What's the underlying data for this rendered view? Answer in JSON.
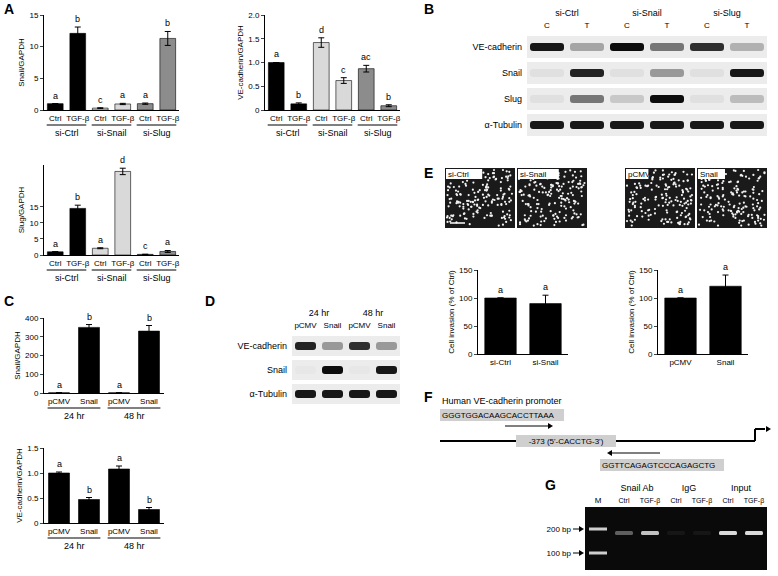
{
  "chart_data": [
    {
      "type": "bar",
      "y_label": "Snail/GAPDH",
      "categories": [
        "Ctrl",
        "TGF-β",
        "Ctrl",
        "TGF-β",
        "Ctrl",
        "TGF-β"
      ],
      "groups": [
        "si-Ctrl",
        "si-Ctrl",
        "si-Snail",
        "si-Snail",
        "si-Slug",
        "si-Slug"
      ],
      "values": [
        1,
        12.1,
        0.3,
        0.95,
        1.0,
        11.3
      ],
      "errors": [
        0,
        1.0,
        0.05,
        0.1,
        0.1,
        1.1
      ],
      "letters": [
        "a",
        "b",
        "c",
        "a",
        "a",
        "b"
      ],
      "colors": [
        "#000000",
        "#000000",
        "#d9d9d9",
        "#d9d9d9",
        "#8c8c8c",
        "#8c8c8c"
      ],
      "ylim": [
        0,
        15
      ],
      "yticks": [
        0,
        5,
        10,
        15
      ],
      "grid": false
    },
    {
      "type": "bar",
      "y_label": "VE-cadherin/GAPDH",
      "categories": [
        "Ctrl",
        "TGF-β",
        "Ctrl",
        "TGF-β",
        "Ctrl",
        "TGF-β"
      ],
      "groups": [
        "si-Ctrl",
        "si-Ctrl",
        "si-Snail",
        "si-Snail",
        "si-Slug",
        "si-Slug"
      ],
      "values": [
        1,
        0.13,
        1.42,
        0.62,
        0.87,
        0.09
      ],
      "errors": [
        0,
        0.02,
        0.1,
        0.06,
        0.07,
        0.02
      ],
      "letters": [
        "a",
        "b",
        "d",
        "c",
        "ac",
        "b"
      ],
      "colors": [
        "#000000",
        "#000000",
        "#d9d9d9",
        "#d9d9d9",
        "#8c8c8c",
        "#8c8c8c"
      ],
      "ylim": [
        0,
        2
      ],
      "yticks": [
        0,
        0.5,
        {
          "value": 1,
          "label": "1.0"
        },
        1.5,
        {
          "value": 2,
          "label": "2.0"
        }
      ],
      "grid": false
    },
    {
      "type": "bar",
      "y_label": "Slug/GAPDH",
      "categories": [
        "Ctrl",
        "TGF-β",
        "Ctrl",
        "TGF-β",
        "Ctrl",
        "TGF-β"
      ],
      "groups": [
        "si-Ctrl",
        "si-Ctrl",
        "si-Snail",
        "si-Snail",
        "si-Slug",
        "si-Slug"
      ],
      "values": [
        1,
        14.5,
        2.1,
        26,
        0.2,
        1.1
      ],
      "errors": [
        0,
        1.0,
        0.15,
        1.0,
        0.05,
        0.3
      ],
      "letters": [
        "a",
        "b",
        "a",
        "d",
        "c",
        "a"
      ],
      "colors": [
        "#000000",
        "#000000",
        "#d9d9d9",
        "#d9d9d9",
        "#8c8c8c",
        "#8c8c8c"
      ],
      "ylim": [
        0,
        28
      ],
      "yticks": [
        0,
        5,
        10,
        15
      ],
      "grid": false
    },
    {
      "type": "bar",
      "y_label": "Snail/GAPDH",
      "categories": [
        "pCMV",
        "Snail",
        "pCMV",
        "Snail"
      ],
      "groups": [
        "24 hr",
        "24 hr",
        "48 hr",
        "48 hr"
      ],
      "values": [
        1,
        350,
        1,
        330
      ],
      "errors": [
        0,
        15,
        0,
        30
      ],
      "letters": [
        "a",
        "b",
        "a",
        "b"
      ],
      "color": "#000000",
      "ylim": [
        0,
        400
      ],
      "yticks": [
        0,
        100,
        200,
        300,
        400
      ],
      "grid": false
    },
    {
      "type": "bar",
      "y_label": "VE-cadherin/GAPDH",
      "categories": [
        "pCMV",
        "Snail",
        "pCMV",
        "Snail"
      ],
      "groups": [
        "24 hr",
        "24 hr",
        "48 hr",
        "48 hr"
      ],
      "values": [
        1,
        0.47,
        1.08,
        0.27
      ],
      "errors": [
        0.02,
        0.04,
        0.06,
        0.04
      ],
      "letters": [
        "a",
        "b",
        "a",
        "b"
      ],
      "color": "#000000",
      "ylim": [
        0,
        1.5
      ],
      "yticks": [
        0,
        0.5,
        {
          "value": 1,
          "label": "1.0"
        },
        1.5
      ],
      "grid": false
    },
    {
      "type": "bar",
      "y_label": "Cell invasion (% of Ctrl)",
      "categories": [
        "si-Ctrl",
        "si-Snail"
      ],
      "values": [
        100,
        90
      ],
      "errors": [
        0,
        15
      ],
      "letters": [
        "a",
        "a"
      ],
      "color": "#000000",
      "ylim": [
        0,
        150
      ],
      "yticks": [
        0,
        50,
        100,
        150
      ],
      "grid": false
    },
    {
      "type": "bar",
      "y_label": "Cell invasion (% of Ctrl)",
      "categories": [
        "pCMV",
        "Snail"
      ],
      "values": [
        100,
        121
      ],
      "errors": [
        0,
        20
      ],
      "letters": [
        "a",
        "a"
      ],
      "color": "#000000",
      "ylim": [
        0,
        150
      ],
      "yticks": [
        0,
        50,
        100,
        150
      ],
      "grid": false
    }
  ],
  "panel_labels": [
    "A",
    "B",
    "C",
    "D",
    "E",
    "F",
    "G"
  ],
  "blot_B": {
    "groups": [
      {
        "label": "si-Ctrl",
        "lanes": [
          "C",
          "T"
        ]
      },
      {
        "label": "si-Snail",
        "lanes": [
          "C",
          "T"
        ]
      },
      {
        "label": "si-Slug",
        "lanes": [
          "C",
          "T"
        ]
      }
    ],
    "rows": [
      {
        "label": "VE-cadherin",
        "intensity": [
          0.9,
          0.3,
          0.95,
          0.5,
          0.8,
          0.25
        ]
      },
      {
        "label": "Snail",
        "intensity": [
          0.05,
          0.85,
          0.05,
          0.35,
          0.05,
          0.9
        ]
      },
      {
        "label": "Slug",
        "intensity": [
          0.05,
          0.5,
          0.15,
          0.95,
          0.05,
          0.2
        ]
      },
      {
        "label": "α-Tubulin",
        "intensity": [
          0.9,
          0.9,
          0.9,
          0.9,
          0.9,
          0.9
        ]
      }
    ]
  },
  "blot_D": {
    "groups": [
      {
        "label": "24 hr",
        "lanes": [
          "pCMV",
          "Snail"
        ]
      },
      {
        "label": "48 hr",
        "lanes": [
          "pCMV",
          "Snail"
        ]
      }
    ],
    "rows": [
      {
        "label": "VE-cadherin",
        "intensity": [
          0.85,
          0.35,
          0.8,
          0.35
        ]
      },
      {
        "label": "Snail",
        "intensity": [
          0.02,
          0.95,
          0.02,
          0.9
        ]
      },
      {
        "label": "α-Tubulin",
        "intensity": [
          0.9,
          0.9,
          0.9,
          0.9
        ]
      }
    ]
  },
  "images_E": {
    "labels": [
      "si-Ctrl",
      "si-Snail",
      "pCMV",
      "Snail"
    ]
  },
  "promoter_F": {
    "title": "Human VE-cadherin promoter",
    "forward_primer": "GGGTGGACAAGCACCTTAAA",
    "site": "-373 (5'-CACCTG-3')",
    "reverse_primer": "GGTTCAGAGTCCCAGAGCTG"
  },
  "gel_G": {
    "marker": "M",
    "groups": [
      {
        "label": "Snail Ab",
        "lanes": [
          "Ctrl",
          "TGF-β"
        ]
      },
      {
        "label": "IgG",
        "lanes": [
          "Ctrl",
          "TGF-β"
        ]
      },
      {
        "label": "Input",
        "lanes": [
          "Ctrl",
          "TGF-β"
        ]
      }
    ],
    "intensity": [
      0.35,
      0.75,
      0.05,
      0.05,
      0.85,
      0.85
    ],
    "sizes": [
      "200 bp",
      "100 bp"
    ]
  }
}
